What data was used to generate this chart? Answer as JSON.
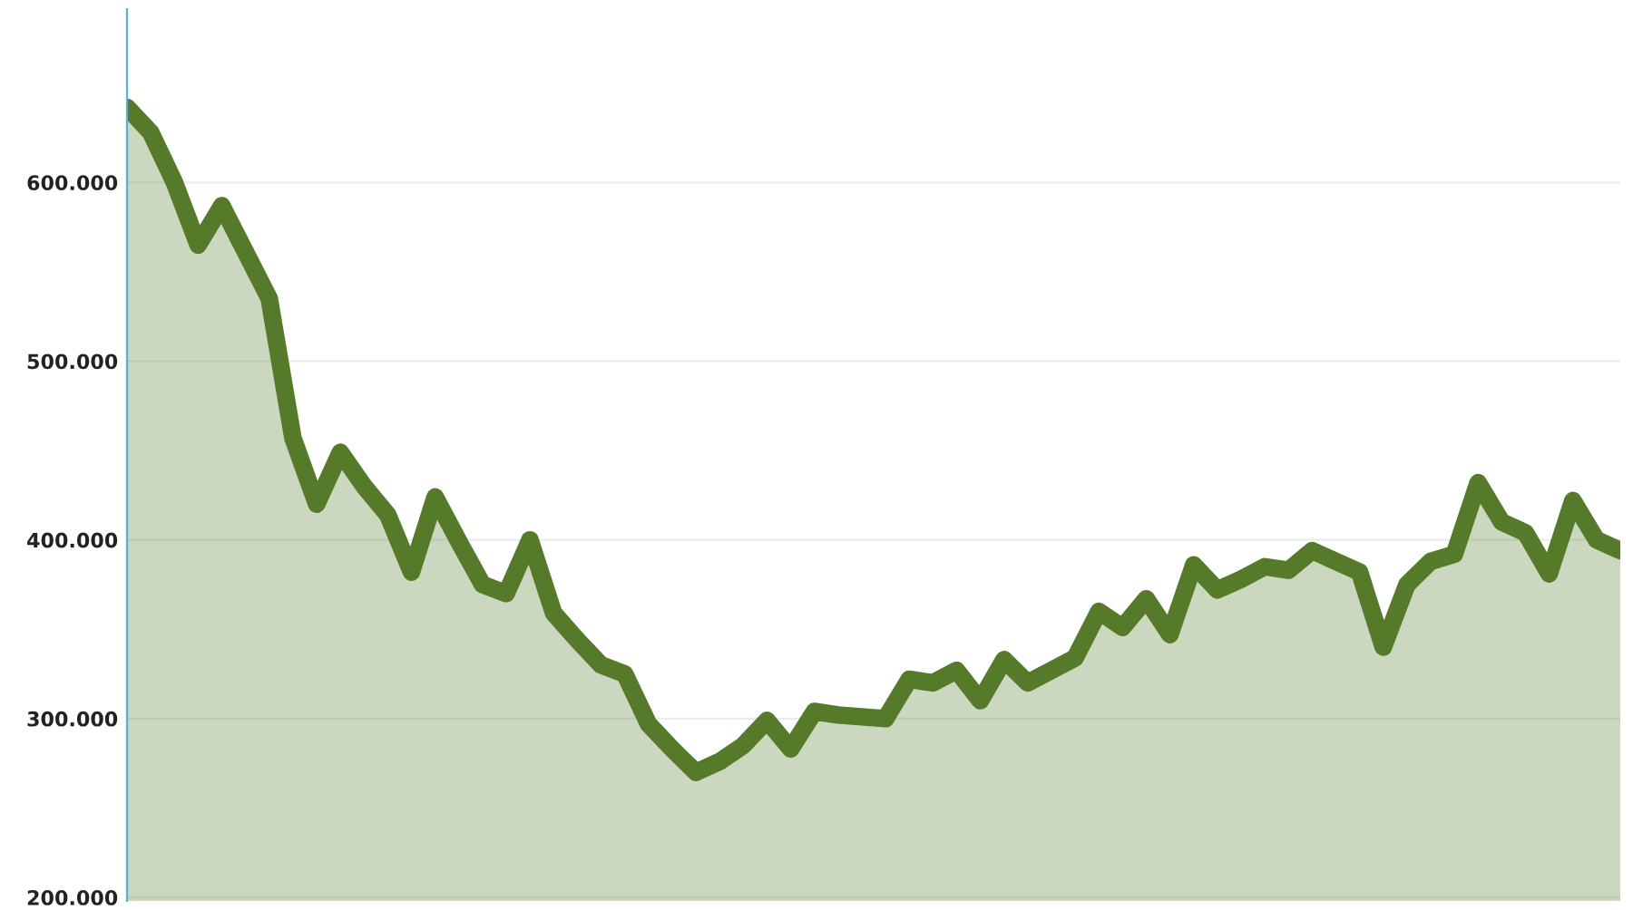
{
  "chart_data": {
    "type": "area",
    "categories": [
      null,
      null,
      null,
      null,
      null,
      null,
      null,
      null,
      null,
      null,
      null,
      null,
      null,
      null,
      null,
      null,
      null,
      null,
      null,
      null,
      null,
      null,
      null,
      null,
      null,
      null,
      null,
      null,
      null,
      null,
      null,
      null,
      null,
      null,
      null,
      null,
      null,
      null,
      null,
      null,
      null,
      null,
      null,
      null,
      null,
      null,
      null,
      null,
      null,
      null,
      null,
      null,
      null,
      null,
      null,
      null,
      null,
      null,
      null,
      null,
      null,
      null,
      null,
      null
    ],
    "series": [
      {
        "color": "#557a2a",
        "values": [
          642,
          628,
          600,
          565,
          587,
          561,
          535,
          457,
          420,
          449,
          430,
          414,
          382,
          424,
          399,
          375,
          370,
          400,
          359,
          344,
          330,
          325,
          297,
          283,
          270,
          276,
          285,
          299,
          283,
          304,
          302,
          301,
          300,
          322,
          320,
          327,
          310,
          333,
          320,
          327,
          334,
          360,
          351,
          367,
          347,
          386,
          372,
          378,
          385,
          383,
          394,
          388,
          382,
          340,
          375,
          388,
          392,
          432,
          410,
          404,
          381,
          422,
          400,
          394
        ]
      }
    ],
    "ylim": [
      198,
      697
    ],
    "yticks": [
      {
        "value": 200,
        "label": "200.000"
      },
      {
        "value": 300,
        "label": "300.000"
      },
      {
        "value": 400,
        "label": "400.000"
      },
      {
        "value": 500,
        "label": "500.000"
      },
      {
        "value": 600,
        "label": "600.000"
      }
    ],
    "grid": "y",
    "tick_labels": "y"
  }
}
